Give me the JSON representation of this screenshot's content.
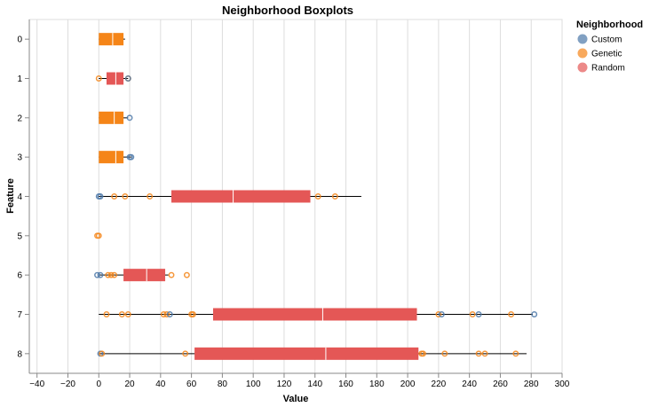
{
  "chart_data": {
    "type": "boxplot",
    "title": "Neighborhood Boxplots",
    "xlabel": "Value",
    "ylabel": "Feature",
    "xlim": [
      -45,
      300
    ],
    "x_ticks": [
      -40,
      -20,
      0,
      20,
      40,
      60,
      80,
      100,
      120,
      140,
      160,
      180,
      200,
      220,
      240,
      260,
      280,
      300
    ],
    "categories": [
      "0",
      "1",
      "2",
      "3",
      "4",
      "5",
      "6",
      "7",
      "8"
    ],
    "grid": true,
    "legend": {
      "title": "Neighborhood",
      "position": "right",
      "entries": [
        {
          "name": "Custom",
          "color": "#4c78a8"
        },
        {
          "name": "Genetic",
          "color": "#f58518"
        },
        {
          "name": "Random",
          "color": "#e45756"
        }
      ]
    },
    "boxes": [
      {
        "feature": "0",
        "group": "Genetic",
        "whisker": [
          0,
          17
        ],
        "q1": 0,
        "median": 9,
        "q3": 16
      },
      {
        "feature": "1",
        "group": "Random",
        "whisker": [
          0,
          19
        ],
        "q1": 5,
        "median": 11,
        "q3": 16
      },
      {
        "feature": "2",
        "group": "Genetic",
        "whisker": [
          0,
          19
        ],
        "q1": 0,
        "median": 10,
        "q3": 16
      },
      {
        "feature": "3",
        "group": "Genetic",
        "whisker": [
          0,
          21
        ],
        "q1": 0,
        "median": 11,
        "q3": 16
      },
      {
        "feature": "4",
        "group": "Random",
        "whisker": [
          0,
          170
        ],
        "q1": 47,
        "median": 87,
        "q3": 137
      },
      {
        "feature": "6",
        "group": "Random",
        "whisker": [
          0,
          45
        ],
        "q1": 16,
        "median": 31,
        "q3": 43
      },
      {
        "feature": "7",
        "group": "Random",
        "whisker": [
          0,
          281
        ],
        "q1": 74,
        "median": 145,
        "q3": 206
      },
      {
        "feature": "8",
        "group": "Random",
        "whisker": [
          0,
          277
        ],
        "q1": 62,
        "median": 147,
        "q3": 207
      }
    ],
    "points": [
      {
        "feature": "0",
        "group": "Genetic",
        "values": []
      },
      {
        "feature": "1",
        "group": "Genetic",
        "values": [
          0,
          19
        ]
      },
      {
        "feature": "1",
        "group": "Custom",
        "values": [
          19
        ]
      },
      {
        "feature": "2",
        "group": "Custom",
        "values": [
          20
        ]
      },
      {
        "feature": "3",
        "group": "Custom",
        "values": [
          20,
          21
        ]
      },
      {
        "feature": "4",
        "group": "Custom",
        "values": [
          0,
          1
        ]
      },
      {
        "feature": "4",
        "group": "Genetic",
        "values": [
          10,
          17,
          33,
          142,
          153
        ]
      },
      {
        "feature": "5",
        "group": "Genetic",
        "values": [
          -1,
          0
        ]
      },
      {
        "feature": "6",
        "group": "Custom",
        "values": [
          -1,
          1
        ]
      },
      {
        "feature": "6",
        "group": "Genetic",
        "values": [
          6,
          8,
          10,
          47,
          57
        ]
      },
      {
        "feature": "7",
        "group": "Genetic",
        "values": [
          5,
          15,
          19,
          42,
          44,
          60,
          61,
          220,
          242,
          267
        ]
      },
      {
        "feature": "7",
        "group": "Custom",
        "values": [
          46,
          222,
          246,
          282
        ]
      },
      {
        "feature": "8",
        "group": "Custom",
        "values": [
          1
        ]
      },
      {
        "feature": "8",
        "group": "Genetic",
        "values": [
          2,
          56,
          209,
          210,
          224,
          246,
          250,
          270
        ]
      }
    ]
  }
}
